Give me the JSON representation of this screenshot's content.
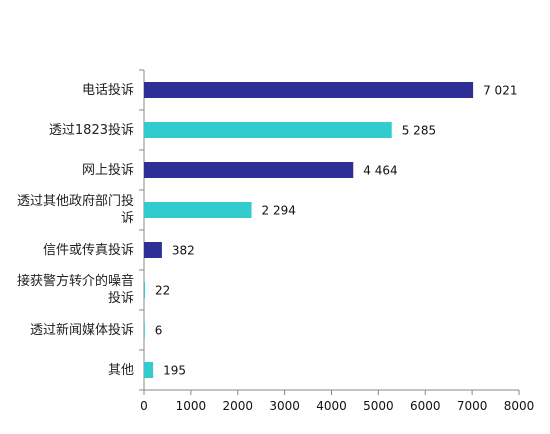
{
  "chart_data": {
    "type": "bar",
    "orientation": "horizontal",
    "categories": [
      "电话投诉",
      "透过1823投诉",
      "网上投诉",
      "透过其他政府部门投\n诉",
      "信件或传真投诉",
      "接获警方转介的噪音\n投诉",
      "透过新闻媒体投诉",
      "其他"
    ],
    "values": [
      7021,
      5285,
      4464,
      2294,
      382,
      22,
      6,
      195
    ],
    "value_labels": [
      "7 021",
      "5 285",
      "4 464",
      "2 294",
      "382",
      "22",
      "6",
      "195"
    ],
    "bar_colors": [
      "#2e2e96",
      "#33cccc",
      "#2e2e96",
      "#33cccc",
      "#2e2e96",
      "#33cccc",
      "#33cccc",
      "#33cccc"
    ],
    "xlim": [
      0,
      8000
    ],
    "xticks": [
      0,
      1000,
      2000,
      3000,
      4000,
      5000,
      6000,
      7000,
      8000
    ],
    "grid": false,
    "title": "",
    "xlabel": "",
    "ylabel": ""
  }
}
